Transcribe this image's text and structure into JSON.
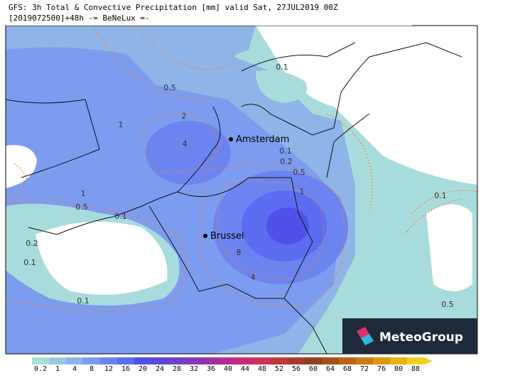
{
  "header": {
    "line1": "GFS: 3h Total & Convective Precipitation [mm] valid Sat, 27JUL2019 00Z",
    "line2": "[2019072500]+48h -= BeNeLux =-"
  },
  "cities": [
    "Amsterdam",
    "Brussel"
  ],
  "contour_labels": [
    "0.1",
    "0.5",
    "1",
    "2",
    "4",
    "0.1",
    "0.2",
    "0.5",
    "1",
    "1",
    "0.5",
    "0.1",
    "0.2",
    "0.1",
    "8",
    "4",
    "0.1",
    "0.1",
    "0.5"
  ],
  "colorbar": {
    "labels": [
      "0.2",
      "1",
      "4",
      "8",
      "12",
      "16",
      "20",
      "24",
      "28",
      "32",
      "36",
      "40",
      "44",
      "48",
      "52",
      "56",
      "60",
      "64",
      "68",
      "72",
      "76",
      "80",
      "88"
    ],
    "colors": [
      "#a8e0dc",
      "#9cc8e4",
      "#8cb4ec",
      "#7c9cf0",
      "#6c84f0",
      "#5c6cf0",
      "#5050e8",
      "#5c48d8",
      "#7040c8",
      "#8838b8",
      "#a030a8",
      "#b82c94",
      "#c82c78",
      "#d0305c",
      "#c03838",
      "#a83c2c",
      "#904020",
      "#a05018",
      "#b86414",
      "#cc7c10",
      "#dc9810",
      "#e8b414",
      "#f0d020"
    ]
  },
  "logo": "MeteoGroup"
}
